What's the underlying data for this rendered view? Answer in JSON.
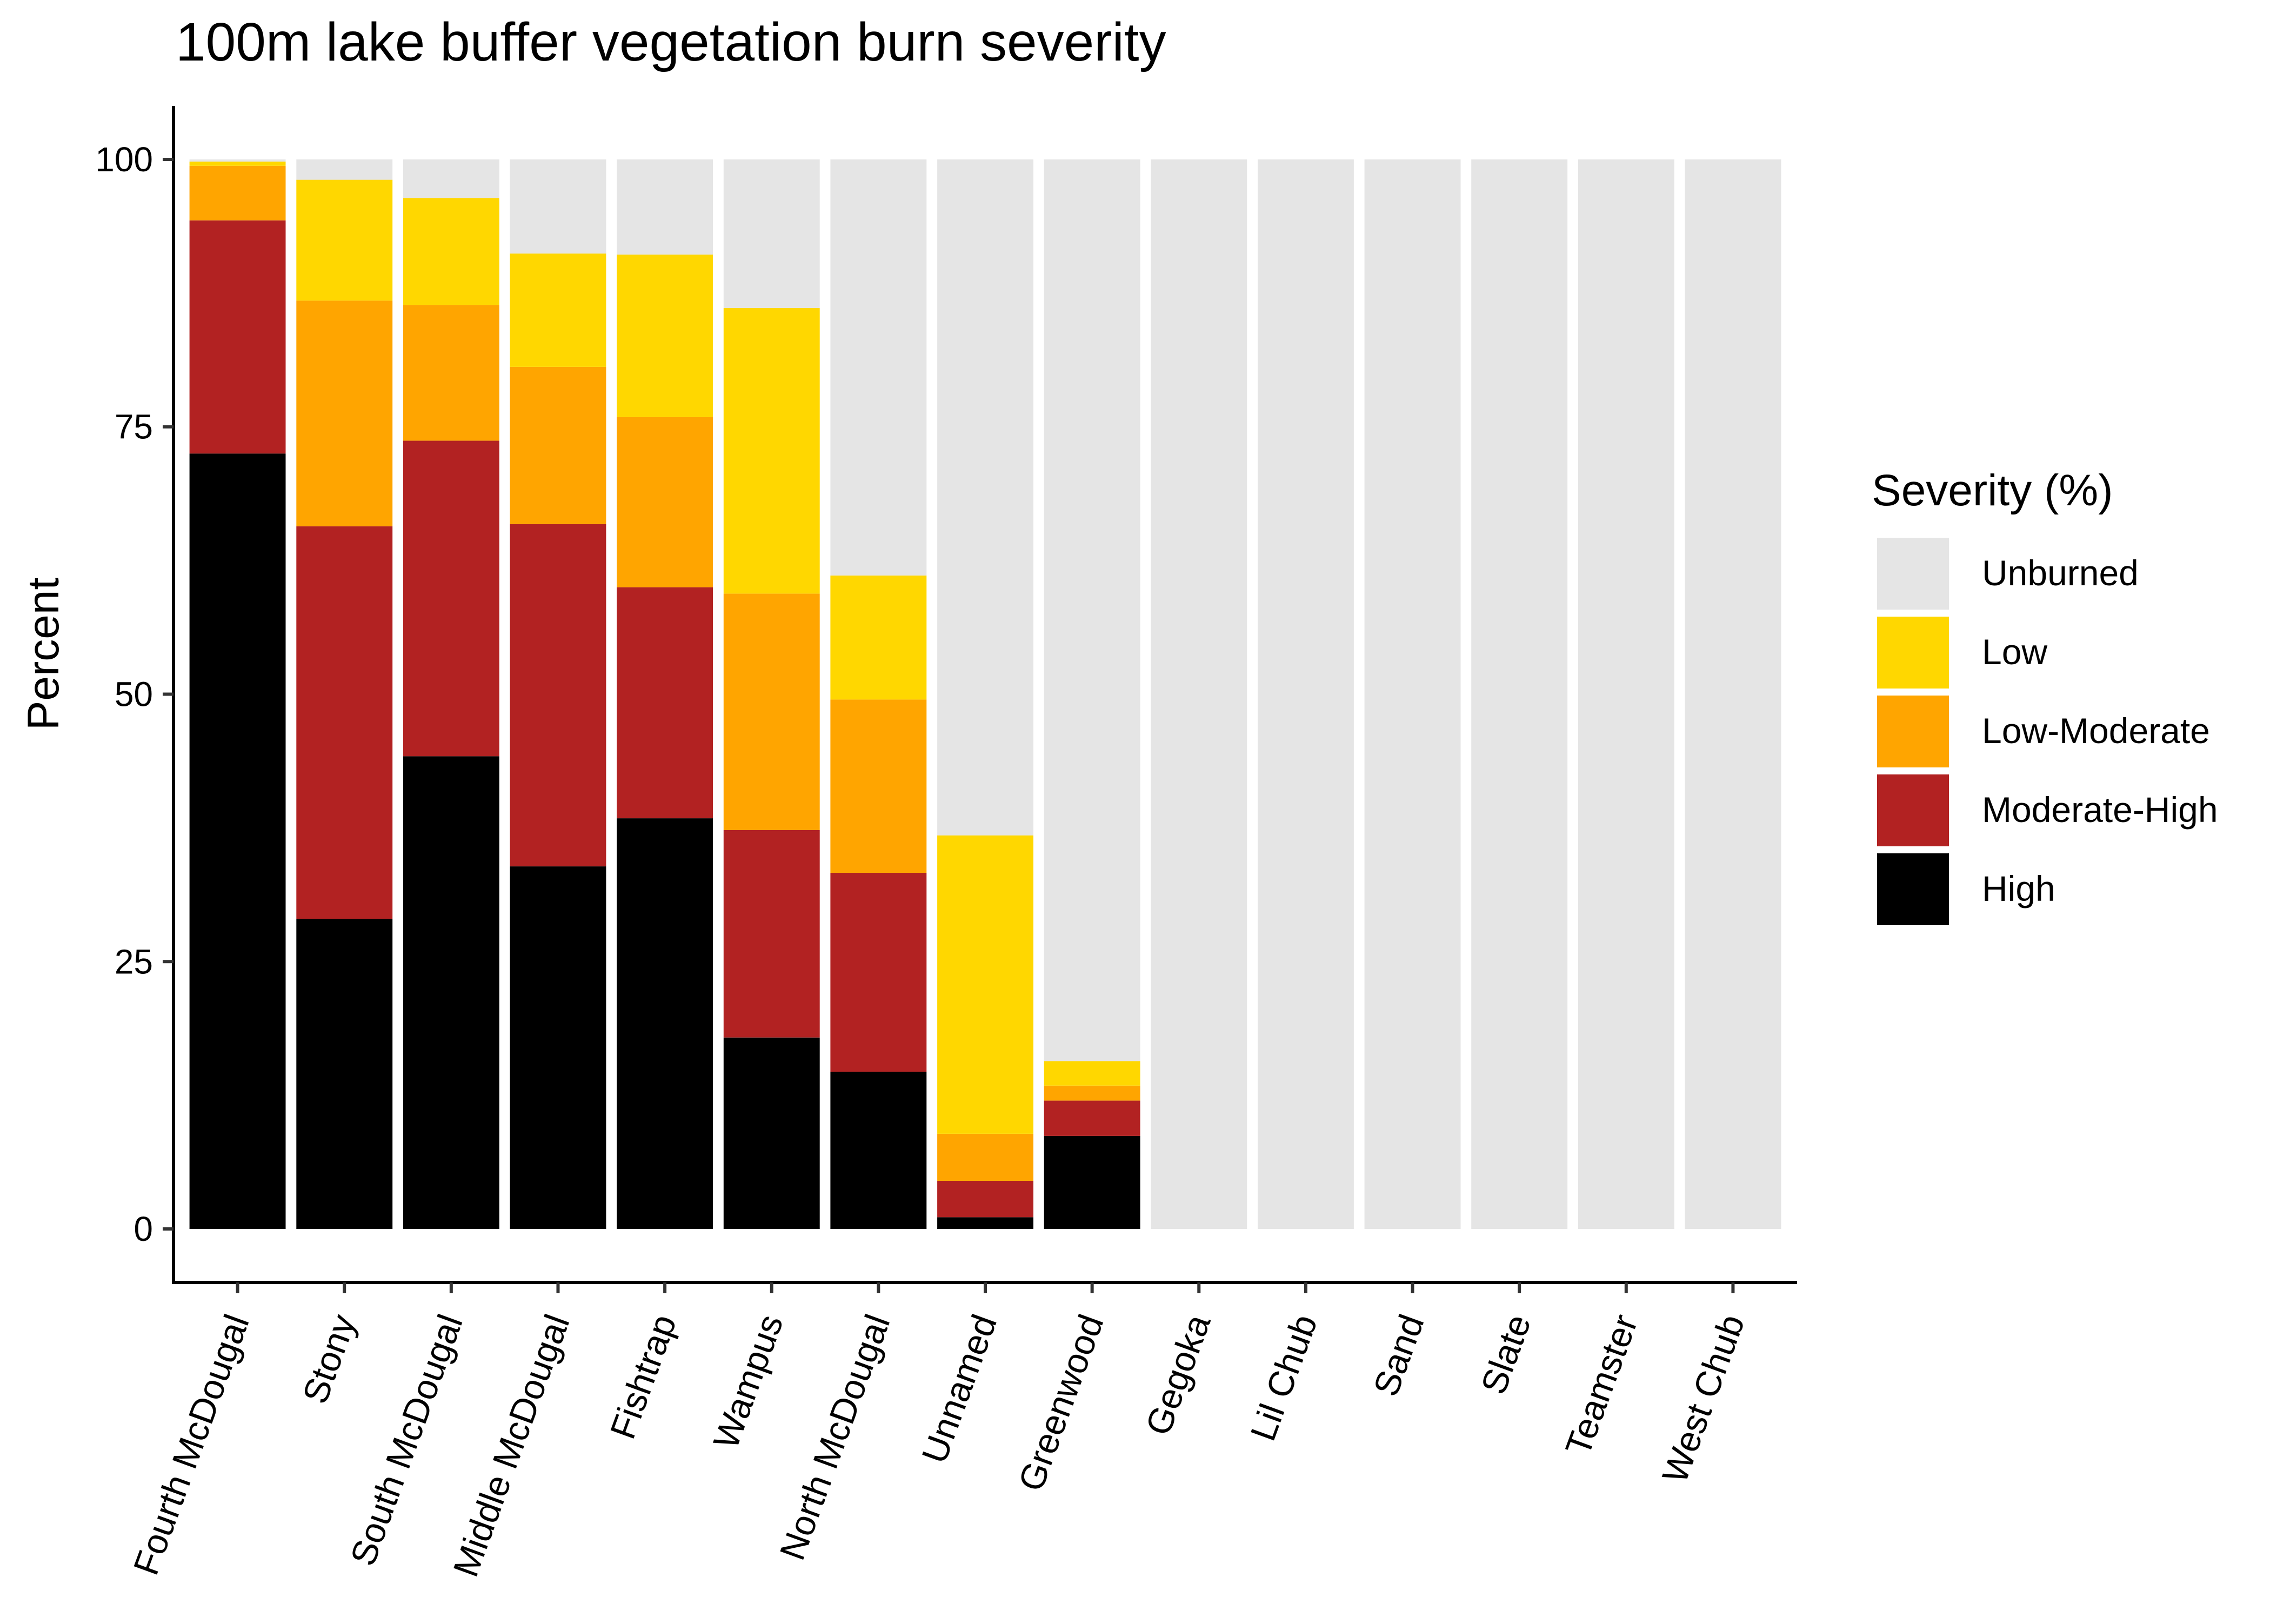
{
  "chart_data": {
    "type": "bar",
    "stacked": true,
    "title": "100m lake buffer vegetation burn severity",
    "xlabel": "",
    "ylabel": "Percent",
    "ylim": [
      -5,
      105
    ],
    "yticks": [
      0,
      25,
      50,
      75,
      100
    ],
    "grid": false,
    "legend_position": "right",
    "legend_title": "Severity (%)",
    "categories": [
      "Fourth McDougal",
      "Stony",
      "South McDougal",
      "Middle McDougal",
      "Fishtrap",
      "Wampus",
      "North McDougal",
      "Unnamed",
      "Greenwood",
      "Gegoka",
      "Lil Chub",
      "Sand",
      "Slate",
      "Teamster",
      "West Chub"
    ],
    "series": [
      {
        "name": "High",
        "color": "#000000",
        "values": [
          72.5,
          29,
          44.2,
          33.9,
          38.4,
          17.9,
          14.7,
          1.1,
          8.7,
          0,
          0,
          0,
          0,
          0,
          0
        ]
      },
      {
        "name": "Moderate-High",
        "color": "#B22222",
        "values": [
          21.8,
          36.7,
          29.5,
          32.0,
          21.6,
          19.4,
          18.6,
          3.4,
          3.3,
          0,
          0,
          0,
          0,
          0,
          0
        ]
      },
      {
        "name": "Low-Moderate",
        "color": "#FFA500",
        "values": [
          5.1,
          21.1,
          12.7,
          14.7,
          15.9,
          22.1,
          16.2,
          4.4,
          1.4,
          0,
          0,
          0,
          0,
          0,
          0
        ]
      },
      {
        "name": "Low",
        "color": "#FFD700",
        "values": [
          0.4,
          11.3,
          10.0,
          10.6,
          15.2,
          26.7,
          11.6,
          27.9,
          2.3,
          0,
          0,
          0,
          0,
          0,
          0
        ]
      },
      {
        "name": "Unburned",
        "color": "#E5E5E5",
        "values": [
          0.2,
          1.9,
          3.6,
          8.8,
          8.9,
          13.9,
          38.9,
          63.2,
          84.3,
          100,
          100,
          100,
          100,
          100,
          100
        ]
      }
    ],
    "legend_order": [
      "Unburned",
      "Low",
      "Low-Moderate",
      "Moderate-High",
      "High"
    ]
  }
}
